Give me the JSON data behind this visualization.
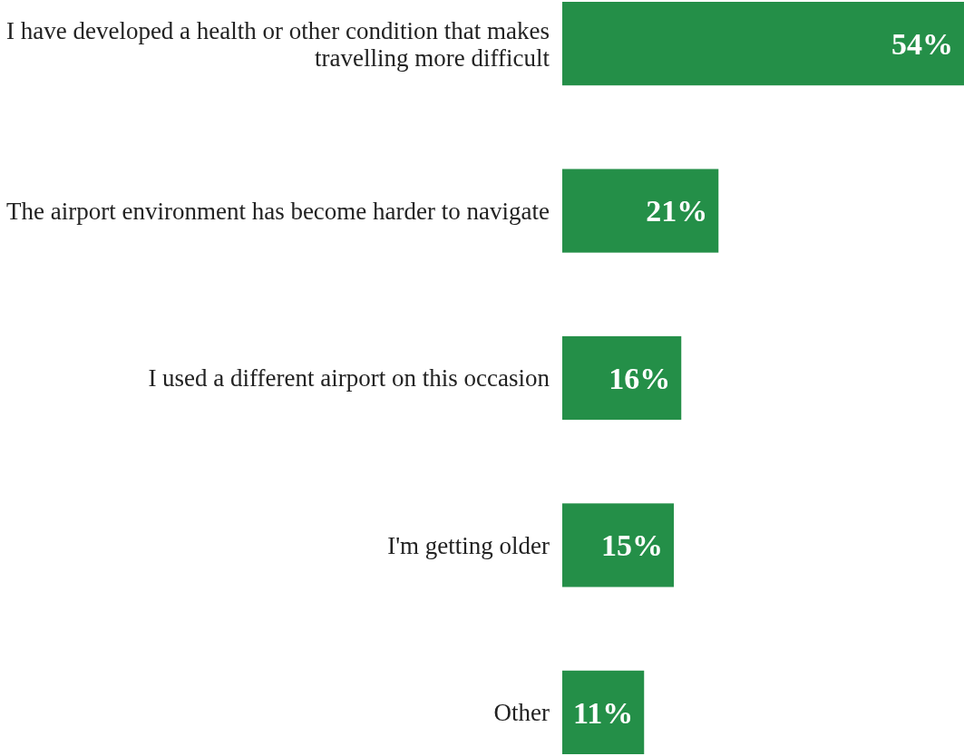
{
  "chart_data": {
    "type": "bar",
    "orientation": "horizontal",
    "categories": [
      "I have developed a health or other condition that makes travelling more difficult",
      "The airport environment has become harder to navigate",
      "I used a different airport on this occasion",
      "I'm getting older",
      "Other"
    ],
    "values": [
      54,
      21,
      16,
      15,
      11
    ],
    "value_labels": [
      "54%",
      "21%",
      "16%",
      "15%",
      "11%"
    ],
    "color": "#248f48"
  }
}
